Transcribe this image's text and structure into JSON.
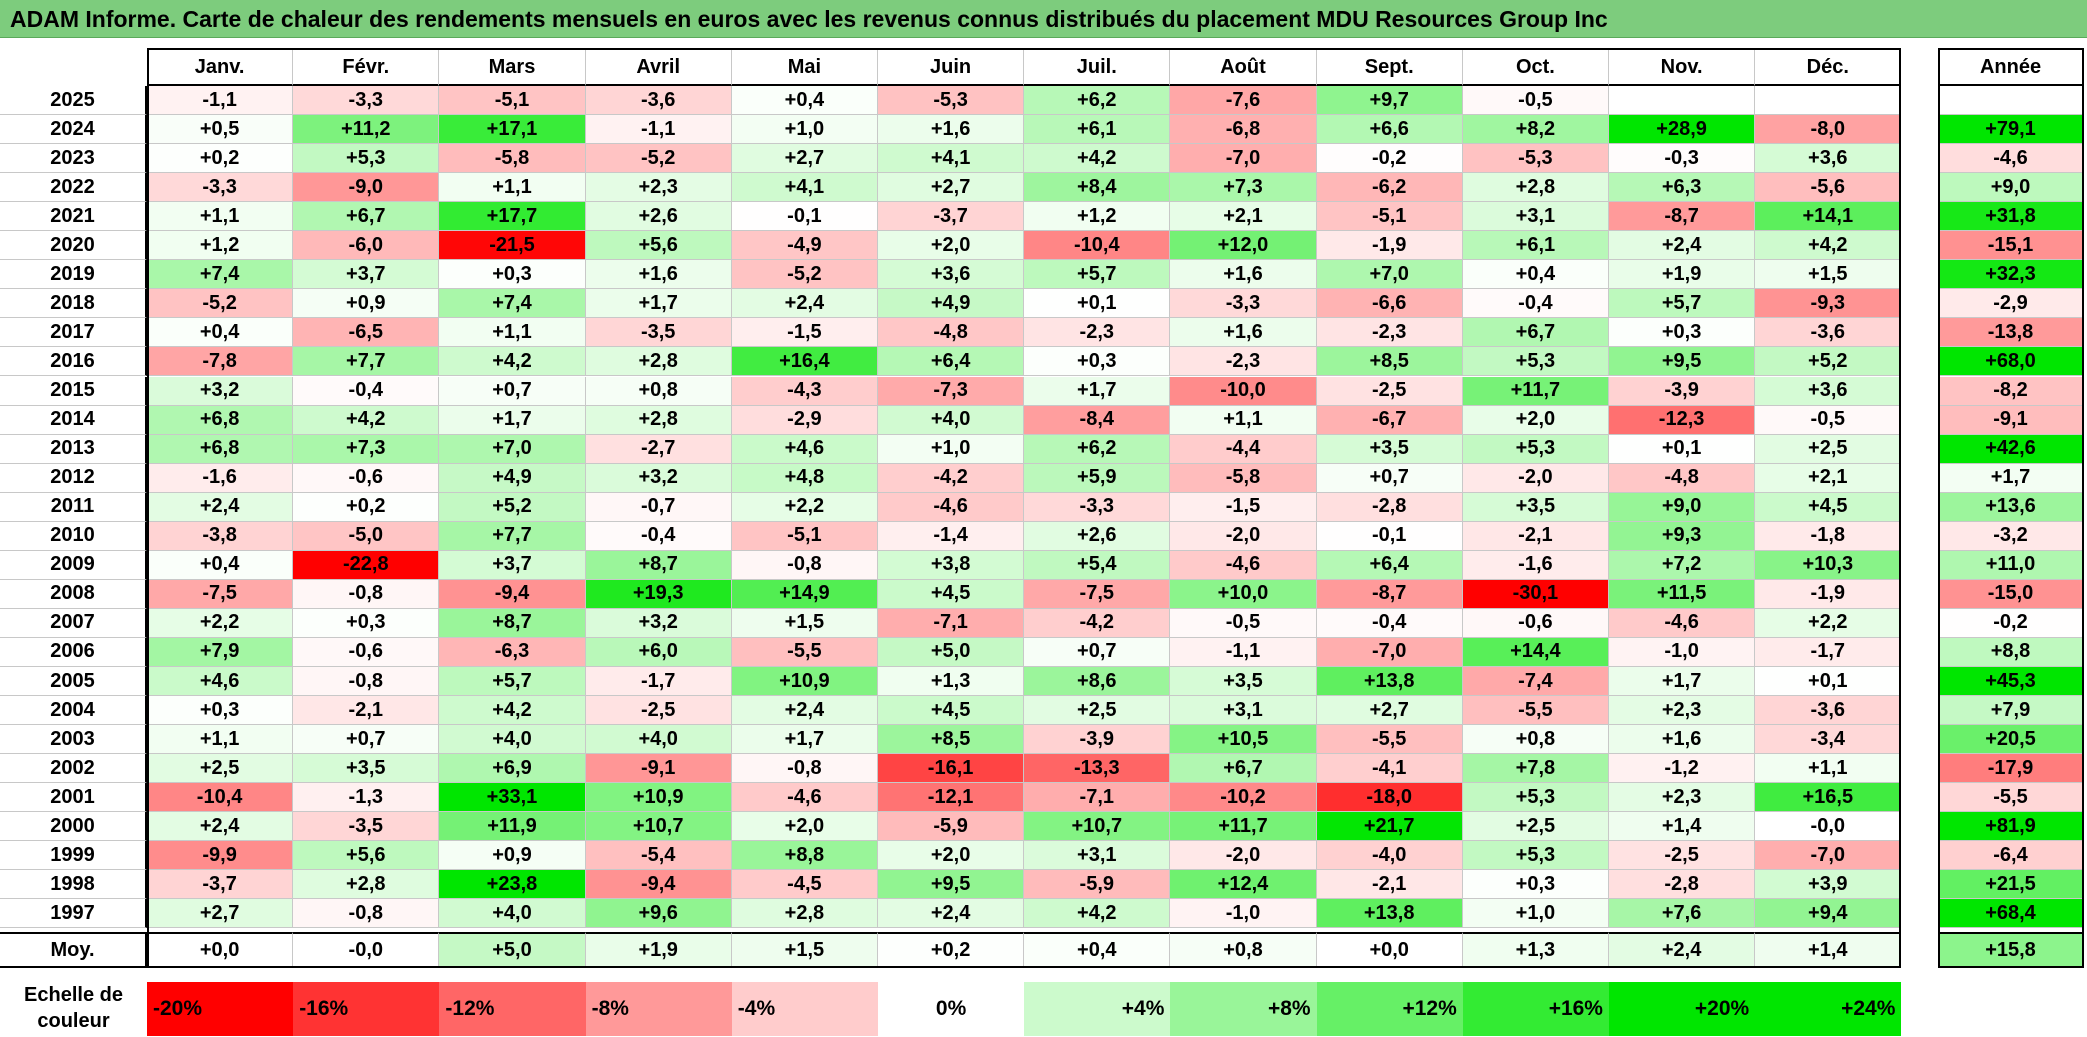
{
  "title": "ADAM Informe. Carte de chaleur des rendements mensuels en euros avec les revenus connus distribués du placement MDU Resources Group Inc",
  "chart_data": {
    "type": "heatmap",
    "months": [
      "Janv.",
      "Févr.",
      "Mars",
      "Avril",
      "Mai",
      "Juin",
      "Juil.",
      "Août",
      "Sept.",
      "Oct.",
      "Nov.",
      "Déc."
    ],
    "annual_header": "Année",
    "rows": [
      {
        "year": "2025",
        "values": [
          "-1,1",
          "-3,3",
          "-5,1",
          "-3,6",
          "+0,4",
          "-5,3",
          "+6,2",
          "-7,6",
          "+9,7",
          "-0,5",
          "",
          ""
        ],
        "annual": ""
      },
      {
        "year": "2024",
        "values": [
          "+0,5",
          "+11,2",
          "+17,1",
          "-1,1",
          "+1,0",
          "+1,6",
          "+6,1",
          "-6,8",
          "+6,6",
          "+8,2",
          "+28,9",
          "-8,0"
        ],
        "annual": "+79,1"
      },
      {
        "year": "2023",
        "values": [
          "+0,2",
          "+5,3",
          "-5,8",
          "-5,2",
          "+2,7",
          "+4,1",
          "+4,2",
          "-7,0",
          "-0,2",
          "-5,3",
          "-0,3",
          "+3,6"
        ],
        "annual": "-4,6"
      },
      {
        "year": "2022",
        "values": [
          "-3,3",
          "-9,0",
          "+1,1",
          "+2,3",
          "+4,1",
          "+2,7",
          "+8,4",
          "+7,3",
          "-6,2",
          "+2,8",
          "+6,3",
          "-5,6"
        ],
        "annual": "+9,0"
      },
      {
        "year": "2021",
        "values": [
          "+1,1",
          "+6,7",
          "+17,7",
          "+2,6",
          "-0,1",
          "-3,7",
          "+1,2",
          "+2,1",
          "-5,1",
          "+3,1",
          "-8,7",
          "+14,1"
        ],
        "annual": "+31,8"
      },
      {
        "year": "2020",
        "values": [
          "+1,2",
          "-6,0",
          "-21,5",
          "+5,6",
          "-4,9",
          "+2,0",
          "-10,4",
          "+12,0",
          "-1,9",
          "+6,1",
          "+2,4",
          "+4,2"
        ],
        "annual": "-15,1"
      },
      {
        "year": "2019",
        "values": [
          "+7,4",
          "+3,7",
          "+0,3",
          "+1,6",
          "-5,2",
          "+3,6",
          "+5,7",
          "+1,6",
          "+7,0",
          "+0,4",
          "+1,9",
          "+1,5"
        ],
        "annual": "+32,3"
      },
      {
        "year": "2018",
        "values": [
          "-5,2",
          "+0,9",
          "+7,4",
          "+1,7",
          "+2,4",
          "+4,9",
          "+0,1",
          "-3,3",
          "-6,6",
          "-0,4",
          "+5,7",
          "-9,3"
        ],
        "annual": "-2,9"
      },
      {
        "year": "2017",
        "values": [
          "+0,4",
          "-6,5",
          "+1,1",
          "-3,5",
          "-1,5",
          "-4,8",
          "-2,3",
          "+1,6",
          "-2,3",
          "+6,7",
          "+0,3",
          "-3,6"
        ],
        "annual": "-13,8"
      },
      {
        "year": "2016",
        "values": [
          "-7,8",
          "+7,7",
          "+4,2",
          "+2,8",
          "+16,4",
          "+6,4",
          "+0,3",
          "-2,3",
          "+8,5",
          "+5,3",
          "+9,5",
          "+5,2"
        ],
        "annual": "+68,0"
      },
      {
        "year": "2015",
        "values": [
          "+3,2",
          "-0,4",
          "+0,7",
          "+0,8",
          "-4,3",
          "-7,3",
          "+1,7",
          "-10,0",
          "-2,5",
          "+11,7",
          "-3,9",
          "+3,6"
        ],
        "annual": "-8,2"
      },
      {
        "year": "2014",
        "values": [
          "+6,8",
          "+4,2",
          "+1,7",
          "+2,8",
          "-2,9",
          "+4,0",
          "-8,4",
          "+1,1",
          "-6,7",
          "+2,0",
          "-12,3",
          "-0,5"
        ],
        "annual": "-9,1"
      },
      {
        "year": "2013",
        "values": [
          "+6,8",
          "+7,3",
          "+7,0",
          "-2,7",
          "+4,6",
          "+1,0",
          "+6,2",
          "-4,4",
          "+3,5",
          "+5,3",
          "+0,1",
          "+2,5"
        ],
        "annual": "+42,6"
      },
      {
        "year": "2012",
        "values": [
          "-1,6",
          "-0,6",
          "+4,9",
          "+3,2",
          "+4,8",
          "-4,2",
          "+5,9",
          "-5,8",
          "+0,7",
          "-2,0",
          "-4,8",
          "+2,1"
        ],
        "annual": "+1,7"
      },
      {
        "year": "2011",
        "values": [
          "+2,4",
          "+0,2",
          "+5,2",
          "-0,7",
          "+2,2",
          "-4,6",
          "-3,3",
          "-1,5",
          "-2,8",
          "+3,5",
          "+9,0",
          "+4,5"
        ],
        "annual": "+13,6"
      },
      {
        "year": "2010",
        "values": [
          "-3,8",
          "-5,0",
          "+7,7",
          "-0,4",
          "-5,1",
          "-1,4",
          "+2,6",
          "-2,0",
          "-0,1",
          "-2,1",
          "+9,3",
          "-1,8"
        ],
        "annual": "-3,2"
      },
      {
        "year": "2009",
        "values": [
          "+0,4",
          "-22,8",
          "+3,7",
          "+8,7",
          "-0,8",
          "+3,8",
          "+5,4",
          "-4,6",
          "+6,4",
          "-1,6",
          "+7,2",
          "+10,3"
        ],
        "annual": "+11,0"
      },
      {
        "year": "2008",
        "values": [
          "-7,5",
          "-0,8",
          "-9,4",
          "+19,3",
          "+14,9",
          "+4,5",
          "-7,5",
          "+10,0",
          "-8,7",
          "-30,1",
          "+11,5",
          "-1,9"
        ],
        "annual": "-15,0"
      },
      {
        "year": "2007",
        "values": [
          "+2,2",
          "+0,3",
          "+8,7",
          "+3,2",
          "+1,5",
          "-7,1",
          "-4,2",
          "-0,5",
          "-0,4",
          "-0,6",
          "-4,6",
          "+2,2"
        ],
        "annual": "-0,2"
      },
      {
        "year": "2006",
        "values": [
          "+7,9",
          "-0,6",
          "-6,3",
          "+6,0",
          "-5,5",
          "+5,0",
          "+0,7",
          "-1,1",
          "-7,0",
          "+14,4",
          "-1,0",
          "-1,7"
        ],
        "annual": "+8,8"
      },
      {
        "year": "2005",
        "values": [
          "+4,6",
          "-0,8",
          "+5,7",
          "-1,7",
          "+10,9",
          "+1,3",
          "+8,6",
          "+3,5",
          "+13,8",
          "-7,4",
          "+1,7",
          "+0,1"
        ],
        "annual": "+45,3"
      },
      {
        "year": "2004",
        "values": [
          "+0,3",
          "-2,1",
          "+4,2",
          "-2,5",
          "+2,4",
          "+4,5",
          "+2,5",
          "+3,1",
          "+2,7",
          "-5,5",
          "+2,3",
          "-3,6"
        ],
        "annual": "+7,9"
      },
      {
        "year": "2003",
        "values": [
          "+1,1",
          "+0,7",
          "+4,0",
          "+4,0",
          "+1,7",
          "+8,5",
          "-3,9",
          "+10,5",
          "-5,5",
          "+0,8",
          "+1,6",
          "-3,4"
        ],
        "annual": "+20,5"
      },
      {
        "year": "2002",
        "values": [
          "+2,5",
          "+3,5",
          "+6,9",
          "-9,1",
          "-0,8",
          "-16,1",
          "-13,3",
          "+6,7",
          "-4,1",
          "+7,8",
          "-1,2",
          "+1,1"
        ],
        "annual": "-17,9"
      },
      {
        "year": "2001",
        "values": [
          "-10,4",
          "-1,3",
          "+33,1",
          "+10,9",
          "-4,6",
          "-12,1",
          "-7,1",
          "-10,2",
          "-18,0",
          "+5,3",
          "+2,3",
          "+16,5"
        ],
        "annual": "-5,5"
      },
      {
        "year": "2000",
        "values": [
          "+2,4",
          "-3,5",
          "+11,9",
          "+10,7",
          "+2,0",
          "-5,9",
          "+10,7",
          "+11,7",
          "+21,7",
          "+2,5",
          "+1,4",
          "-0,0"
        ],
        "annual": "+81,9"
      },
      {
        "year": "1999",
        "values": [
          "-9,9",
          "+5,6",
          "+0,9",
          "-5,4",
          "+8,8",
          "+2,0",
          "+3,1",
          "-2,0",
          "-4,0",
          "+5,3",
          "-2,5",
          "-7,0"
        ],
        "annual": "-6,4"
      },
      {
        "year": "1998",
        "values": [
          "-3,7",
          "+2,8",
          "+23,8",
          "-9,4",
          "-4,5",
          "+9,5",
          "-5,9",
          "+12,4",
          "-2,1",
          "+0,3",
          "-2,8",
          "+3,9"
        ],
        "annual": "+21,5"
      },
      {
        "year": "1997",
        "values": [
          "+2,7",
          "-0,8",
          "+4,0",
          "+9,6",
          "+2,8",
          "+2,4",
          "+4,2",
          "-1,0",
          "+13,8",
          "+1,0",
          "+7,6",
          "+9,4"
        ],
        "annual": "+68,4"
      }
    ],
    "average": {
      "label": "Moy.",
      "values": [
        "+0,0",
        "-0,0",
        "+5,0",
        "+1,9",
        "+1,5",
        "+0,2",
        "+0,4",
        "+0,8",
        "+0,0",
        "+1,3",
        "+2,4",
        "+1,4"
      ],
      "annual": "+15,8"
    },
    "color_scale": {
      "label": "Echelle de couleur",
      "steps": [
        {
          "label": "-20%",
          "value": -20
        },
        {
          "label": "-16%",
          "value": -16
        },
        {
          "label": "-12%",
          "value": -12
        },
        {
          "label": "-8%",
          "value": -8
        },
        {
          "label": "-4%",
          "value": -4
        },
        {
          "label": "0%",
          "value": 0
        },
        {
          "label": "+4%",
          "value": 4
        },
        {
          "label": "+8%",
          "value": 8
        },
        {
          "label": "+12%",
          "value": 12
        },
        {
          "label": "+16%",
          "value": 16
        },
        {
          "label": "+20%",
          "value": 20
        },
        {
          "label": "+24%",
          "value": 24
        }
      ],
      "negative_color": "#ff0000",
      "neutral_color": "#ffffff",
      "positive_color": "#00e600"
    }
  }
}
